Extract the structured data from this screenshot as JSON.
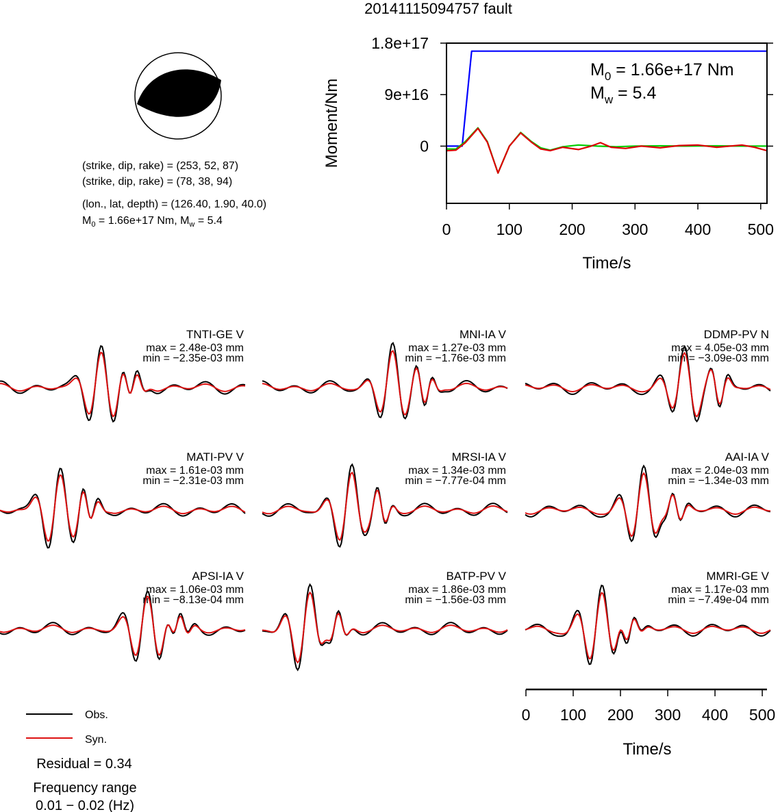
{
  "title": "20141115094757 fault",
  "beachball": {
    "lines": [
      "(strike, dip, rake) = (253, 52, 87)",
      "(strike, dip, rake) = (78, 38, 94)",
      "(lon., lat, depth) = (126.40, 1.90, 40.0)"
    ],
    "m0_line": {
      "prefix": "M",
      "sub": "0",
      "mid": " = 1.66e+17 Nm, M",
      "sub2": "w",
      "suffix": " = 5.4"
    }
  },
  "moment": {
    "m0": {
      "prefix": "M",
      "sub": "0",
      "suffix": " = 1.66e+17 Nm"
    },
    "mw": {
      "prefix": "M",
      "sub": "w",
      "suffix": " = 5.4"
    }
  },
  "chart_data": [
    {
      "type": "line",
      "title": "",
      "xlabel": "Time/s",
      "ylabel": "Moment/Nm",
      "xlim": [
        0,
        510
      ],
      "ylim": [
        -1e+17,
        1.8e+17
      ],
      "xticks": [
        0,
        100,
        200,
        300,
        400,
        500
      ],
      "xtick_labels": [
        "0",
        "100",
        "200",
        "300",
        "400",
        "500"
      ],
      "yticks": [
        0,
        9e+16,
        1.8e+17
      ],
      "ytick_labels": [
        "0",
        "9e+16",
        "1.8e+17"
      ],
      "series": [
        {
          "color": "#0000ff",
          "x": [
            0,
            25,
            40,
            510
          ],
          "y": [
            0,
            0,
            1.66e+17,
            1.66e+17
          ]
        },
        {
          "color": "#00cc00",
          "x": [
            0,
            15,
            30,
            50,
            65,
            82,
            100,
            118,
            135,
            150,
            165,
            185,
            210,
            240,
            270,
            300,
            340,
            380,
            430,
            470,
            510
          ],
          "y": [
            -5000000000000000.0,
            -5000000000000000.0,
            8000000000000000.0,
            3.2e+16,
            8000000000000000.0,
            -4.7e+16,
            0.0,
            2.4e+16,
            8000000000000000.0,
            -3000000000000000.0,
            -7000000000000000.0,
            -1000000000000000.0,
            2000000000000000.0,
            0.0,
            -1000000000000000.0,
            0.0,
            500000000000000.0,
            0.0,
            500000000000000.0,
            0.0,
            0.0
          ]
        },
        {
          "color": "#dd0000",
          "x": [
            0,
            15,
            30,
            50,
            65,
            82,
            100,
            118,
            135,
            150,
            165,
            185,
            210,
            230,
            245,
            262,
            285,
            310,
            340,
            370,
            400,
            430,
            470,
            490,
            510
          ],
          "y": [
            -8000000000000000.0,
            -7000000000000000.0,
            6000000000000000.0,
            3.1e+16,
            7000000000000000.0,
            -4.7e+16,
            0.0,
            2.3e+16,
            7000000000000000.0,
            -5000000000000000.0,
            -8000000000000000.0,
            -2000000000000000.0,
            -6000000000000000.0,
            0.0,
            6000000000000000.0,
            -2000000000000000.0,
            -4000000000000000.0,
            0.0,
            -3000000000000000.0,
            1000000000000000.0,
            2000000000000000.0,
            -2000000000000000.0,
            2000000000000000.0,
            -2000000000000000.0,
            -8000000000000000.0
          ]
        }
      ]
    },
    {
      "type": "line",
      "title": "",
      "xlabel": "Time/s",
      "xlim": [
        0,
        510
      ],
      "xticks": [
        0,
        100,
        200,
        300,
        400,
        500
      ],
      "xtick_labels": [
        "0",
        "100",
        "200",
        "300",
        "400",
        "500"
      ]
    }
  ],
  "stations": [
    {
      "name": "TNTI-GE V",
      "max": "max = 2.48e-03 mm",
      "min": "min = −2.35e-03 mm"
    },
    {
      "name": "MNI-IA V",
      "max": "max = 1.27e-03 mm",
      "min": "min = −1.76e-03 mm"
    },
    {
      "name": "DDMP-PV N",
      "max": "max = 4.05e-03 mm",
      "min": "min = −3.09e-03 mm"
    },
    {
      "name": "MATI-PV V",
      "max": "max = 1.61e-03 mm",
      "min": "min = −2.31e-03 mm"
    },
    {
      "name": "MRSI-IA V",
      "max": "max = 1.34e-03 mm",
      "min": "min = −7.77e-04 mm"
    },
    {
      "name": "AAI-IA V",
      "max": "max = 2.04e-03 mm",
      "min": "min = −1.34e-03 mm"
    },
    {
      "name": "APSI-IA V",
      "max": "max = 1.06e-03 mm",
      "min": "min = −8.13e-04 mm"
    },
    {
      "name": "BATP-PV V",
      "max": "max = 1.86e-03 mm",
      "min": "min = −1.56e-03 mm"
    },
    {
      "name": "MMRI-GE V",
      "max": "max = 1.17e-03 mm",
      "min": "min = −7.49e-04 mm"
    }
  ],
  "legend": {
    "obs": "Obs.",
    "syn": "Syn.",
    "obs_color": "#000000",
    "syn_color": "#dd1111"
  },
  "residual": "Residual = 0.34",
  "freq_label": "Frequency range",
  "freq_range": "0.01 − 0.02 (Hz)"
}
